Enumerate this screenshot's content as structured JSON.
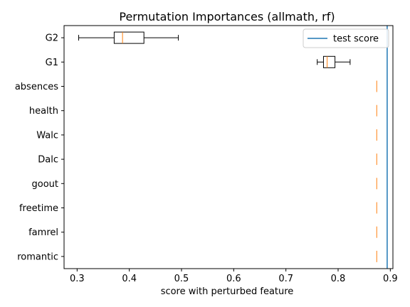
{
  "chart_data": {
    "type": "boxplot",
    "title": "Permutation Importances (allmath, rf)",
    "xlabel": "score with perturbed feature",
    "ylabel": "",
    "xlim": [
      0.275,
      0.905
    ],
    "xticks": [
      0.3,
      0.4,
      0.5,
      0.6,
      0.7,
      0.8,
      0.9
    ],
    "xtick_labels": [
      "0.3",
      "0.4",
      "0.5",
      "0.6",
      "0.7",
      "0.8",
      "0.9"
    ],
    "orientation": "horizontal",
    "categories": [
      "G2",
      "G1",
      "absences",
      "health",
      "Walc",
      "Dalc",
      "goout",
      "freetime",
      "famrel",
      "romantic"
    ],
    "boxes": [
      {
        "label": "G2",
        "whisker_low": 0.303,
        "q1": 0.371,
        "median": 0.387,
        "q3": 0.428,
        "whisker_high": 0.494
      },
      {
        "label": "G1",
        "whisker_low": 0.76,
        "q1": 0.772,
        "median": 0.779,
        "q3": 0.794,
        "whisker_high": 0.823
      },
      {
        "label": "absences",
        "whisker_low": 0.874,
        "q1": 0.874,
        "median": 0.874,
        "q3": 0.874,
        "whisker_high": 0.874
      },
      {
        "label": "health",
        "whisker_low": 0.874,
        "q1": 0.874,
        "median": 0.874,
        "q3": 0.874,
        "whisker_high": 0.874
      },
      {
        "label": "Walc",
        "whisker_low": 0.874,
        "q1": 0.874,
        "median": 0.874,
        "q3": 0.874,
        "whisker_high": 0.874
      },
      {
        "label": "Dalc",
        "whisker_low": 0.874,
        "q1": 0.874,
        "median": 0.874,
        "q3": 0.874,
        "whisker_high": 0.874
      },
      {
        "label": "goout",
        "whisker_low": 0.874,
        "q1": 0.874,
        "median": 0.874,
        "q3": 0.874,
        "whisker_high": 0.874
      },
      {
        "label": "freetime",
        "whisker_low": 0.874,
        "q1": 0.874,
        "median": 0.874,
        "q3": 0.874,
        "whisker_high": 0.874
      },
      {
        "label": "famrel",
        "whisker_low": 0.874,
        "q1": 0.874,
        "median": 0.874,
        "q3": 0.874,
        "whisker_high": 0.874
      },
      {
        "label": "romantic",
        "whisker_low": 0.874,
        "q1": 0.874,
        "median": 0.874,
        "q3": 0.874,
        "whisker_high": 0.874
      }
    ],
    "reference_line": {
      "label": "test score",
      "x": 0.894,
      "color": "#1f77b4"
    },
    "legend": {
      "entries": [
        "test score"
      ],
      "placement": "top-right"
    },
    "grid": false,
    "median_color": "#ff7f0e",
    "box_color": "#000000"
  }
}
